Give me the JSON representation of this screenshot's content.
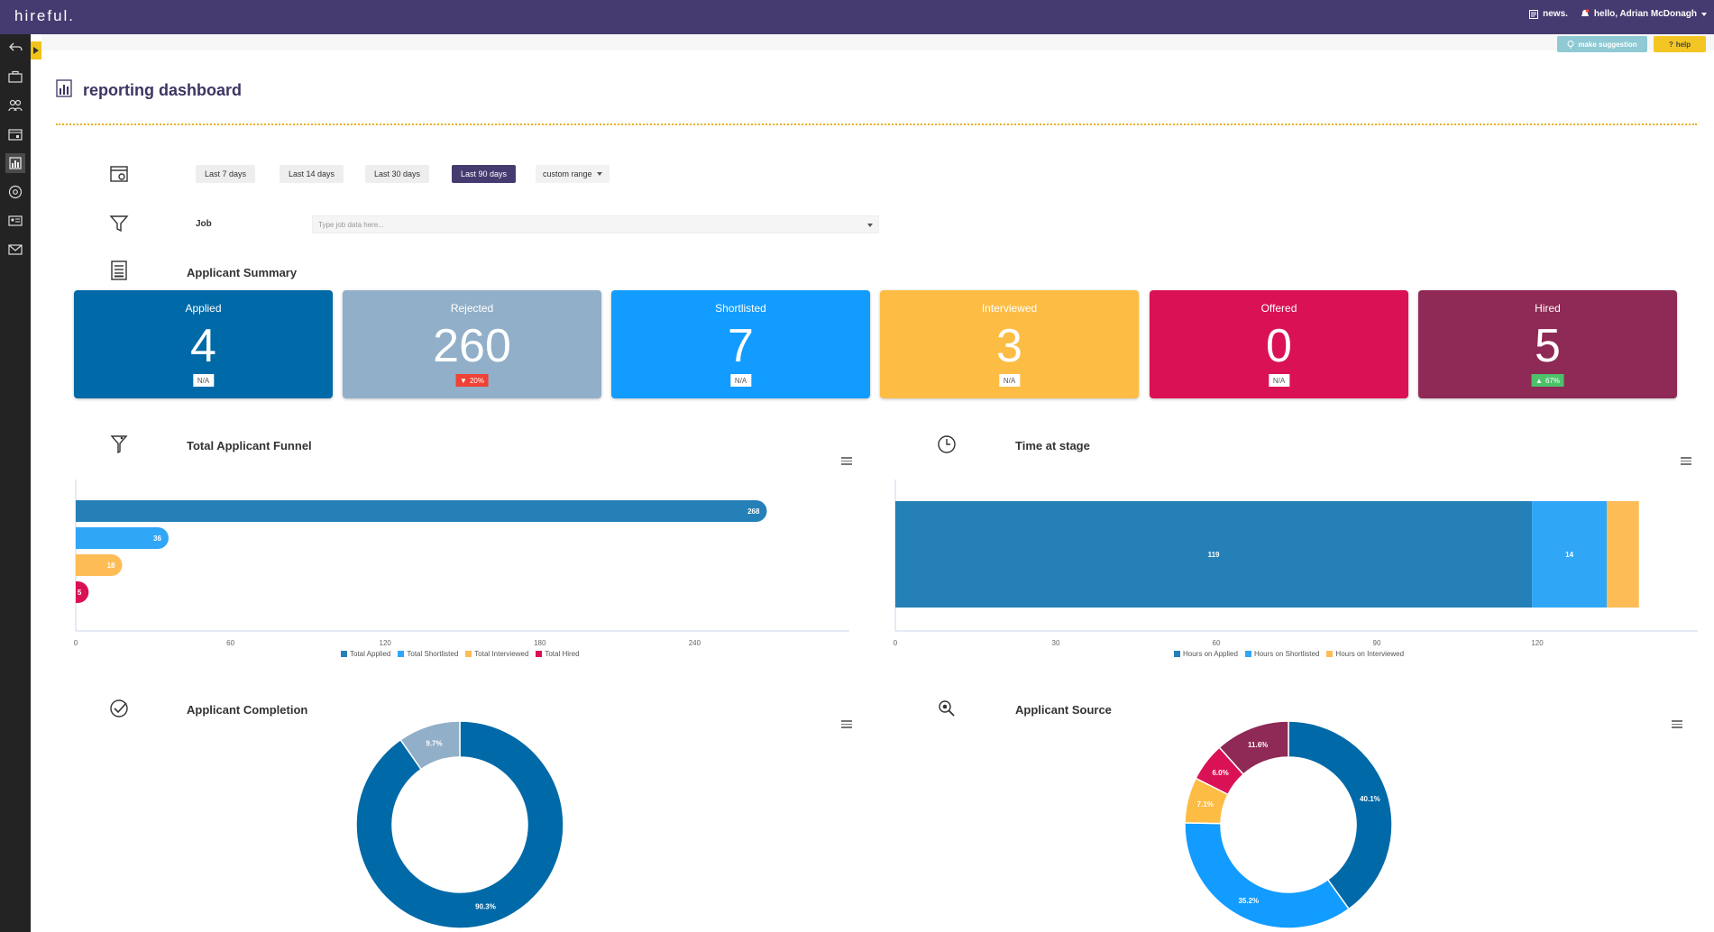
{
  "app": {
    "brand": "hireful."
  },
  "topbar": {
    "news_label": "news.",
    "greeting": "hello, Adrian McDonagh"
  },
  "buttons": {
    "suggestion": "make suggestion",
    "help": "help"
  },
  "page": {
    "title": "reporting dashboard"
  },
  "filters": {
    "ranges": [
      "Last 7 days",
      "Last 14 days",
      "Last 30 days",
      "Last 90 days"
    ],
    "active_range": "Last 90 days",
    "custom_range": "custom range",
    "job_label": "Job",
    "job_placeholder": "Type job data here..."
  },
  "sections": {
    "summary": "Applicant Summary",
    "funnel": "Total Applicant Funnel",
    "time": "Time at stage",
    "completion": "Applicant Completion",
    "source": "Applicant Source"
  },
  "summary_cards": [
    {
      "label": "Applied",
      "value": "4",
      "badge": "N/A",
      "color": "#0069a8"
    },
    {
      "label": "Rejected",
      "value": "260",
      "badge": "20%",
      "badge_type": "down",
      "color": "#91afc8"
    },
    {
      "label": "Shortlisted",
      "value": "7",
      "badge": "N/A",
      "color": "#129cff"
    },
    {
      "label": "Interviewed",
      "value": "3",
      "badge": "N/A",
      "color": "#fdbc44"
    },
    {
      "label": "Offered",
      "value": "0",
      "badge": "N/A",
      "color": "#db1155"
    },
    {
      "label": "Hired",
      "value": "5",
      "badge": "67%",
      "badge_type": "up",
      "color": "#8f2955"
    }
  ],
  "chart_data": [
    {
      "type": "bar",
      "title": "Total Applicant Funnel",
      "orientation": "horizontal",
      "series": [
        {
          "name": "Total Applied",
          "value": 268,
          "color": "#2580b8"
        },
        {
          "name": "Total Shortlisted",
          "value": 36,
          "color": "#30a6f7"
        },
        {
          "name": "Total Interviewed",
          "value": 18,
          "color": "#fdbc55"
        },
        {
          "name": "Total Hired",
          "value": 5,
          "color": "#db1155"
        }
      ],
      "xlim": [
        0,
        300
      ],
      "xticks": [
        "0",
        "60",
        "120",
        "180",
        "240"
      ],
      "legend": "bottom"
    },
    {
      "type": "bar",
      "title": "Time at stage",
      "orientation": "horizontal-stacked",
      "series": [
        {
          "name": "Hours on Applied",
          "value": 119,
          "label": "119",
          "color": "#2580b8"
        },
        {
          "name": "Hours on Shortlisted",
          "value": 14,
          "label": "14",
          "color": "#30a6f7"
        },
        {
          "name": "Hours on Interviewed",
          "value": 6,
          "label": "",
          "color": "#fdbc55"
        }
      ],
      "xlim": [
        0,
        150
      ],
      "xticks": [
        "0",
        "30",
        "60",
        "90",
        "120"
      ],
      "legend": "bottom"
    },
    {
      "type": "pie",
      "title": "Applicant Completion",
      "slices": [
        {
          "label": "90.3%",
          "value": 90.3,
          "color": "#0069a8"
        },
        {
          "label": "9.7%",
          "value": 9.7,
          "color": "#91afc8"
        }
      ]
    },
    {
      "type": "pie",
      "title": "Applicant Source",
      "slices": [
        {
          "label": "40.1%",
          "value": 40.1,
          "color": "#0069a8"
        },
        {
          "label": "35.2%",
          "value": 35.2,
          "color": "#129cff"
        },
        {
          "label": "7.1%",
          "value": 7.1,
          "color": "#fdbc44"
        },
        {
          "label": "6.0%",
          "value": 6.0,
          "color": "#db1155"
        },
        {
          "label": "11.6%",
          "value": 11.6,
          "color": "#8f2955"
        }
      ]
    }
  ]
}
